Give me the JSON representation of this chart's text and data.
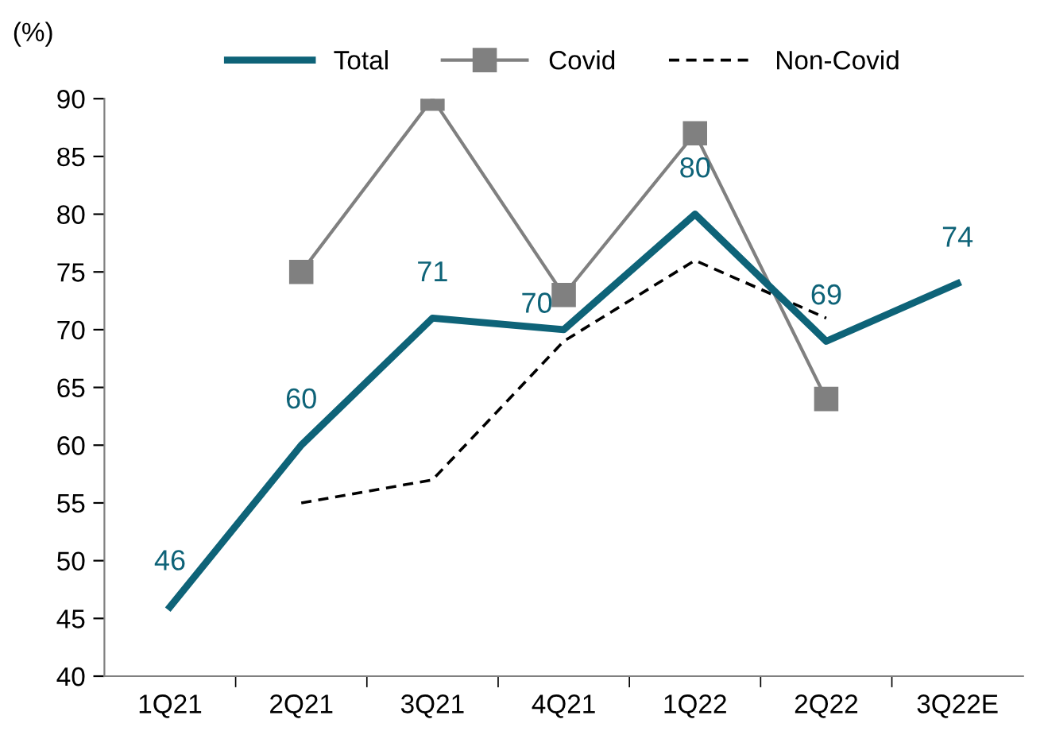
{
  "chart_data": {
    "type": "line",
    "ylabel": "(%)",
    "categories": [
      "1Q21",
      "2Q21",
      "3Q21",
      "4Q21",
      "1Q22",
      "2Q22",
      "3Q22E"
    ],
    "series": [
      {
        "name": "Total",
        "color": "#0e6378",
        "values": [
          46,
          60,
          71,
          70,
          80,
          69,
          74
        ],
        "value_labels": [
          "46",
          "60",
          "71",
          "70",
          "80",
          "69",
          "74"
        ],
        "line_style": "solid",
        "marker": "none"
      },
      {
        "name": "Covid",
        "color": "#808080",
        "values": [
          null,
          75,
          90,
          73,
          87,
          64,
          null
        ],
        "line_style": "solid",
        "marker": "square"
      },
      {
        "name": "Non-Covid",
        "color": "#000000",
        "values": [
          null,
          55,
          57,
          69,
          76,
          71,
          null
        ],
        "line_style": "dashed",
        "marker": "none"
      }
    ],
    "ylim": [
      40,
      90
    ],
    "yticks": [
      40,
      45,
      50,
      55,
      60,
      65,
      70,
      75,
      80,
      85,
      90
    ],
    "grid": false,
    "legend": "top"
  }
}
